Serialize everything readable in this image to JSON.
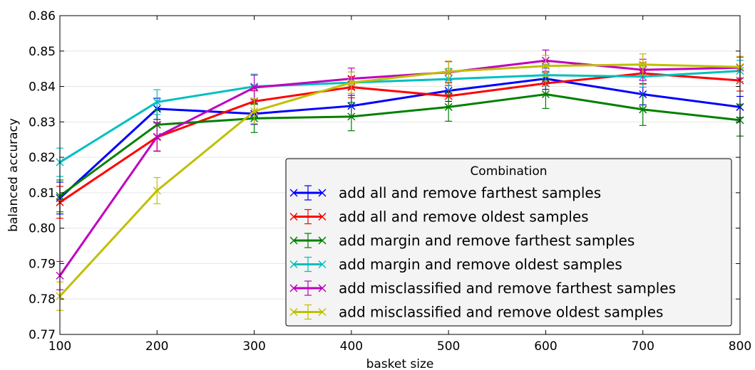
{
  "chart_data": {
    "type": "line",
    "xlabel": "basket size",
    "ylabel": "balanced accuracy",
    "xlim": [
      100,
      800
    ],
    "ylim": [
      0.77,
      0.86
    ],
    "x": [
      100,
      200,
      300,
      400,
      500,
      600,
      700,
      800
    ],
    "x_ticks": [
      "100",
      "200",
      "300",
      "400",
      "500",
      "600",
      "700",
      "800"
    ],
    "y_ticks": [
      "0.77",
      "0.78",
      "0.79",
      "0.80",
      "0.81",
      "0.82",
      "0.83",
      "0.84",
      "0.85",
      "0.86"
    ],
    "y_tick_values": [
      0.77,
      0.78,
      0.79,
      0.8,
      0.81,
      0.82,
      0.83,
      0.84,
      0.85,
      0.86
    ],
    "grid": "horizontal",
    "legend_title": "Combination",
    "legend_position": "lower right",
    "series": [
      {
        "name": "add all and remove farthest samples",
        "color": "#0000ff",
        "values": [
          0.8085,
          0.8337,
          0.8323,
          0.8345,
          0.8388,
          0.8422,
          0.8378,
          0.8342
        ],
        "errors": [
          0.0045,
          0.003,
          0.003,
          0.003,
          0.003,
          0.003,
          0.003,
          0.003
        ]
      },
      {
        "name": "add all and remove oldest samples",
        "color": "#ff0000",
        "values": [
          0.8073,
          0.8257,
          0.8358,
          0.8398,
          0.8373,
          0.8409,
          0.8437,
          0.8417
        ],
        "errors": [
          0.0045,
          0.004,
          0.003,
          0.003,
          0.003,
          0.003,
          0.003,
          0.003
        ]
      },
      {
        "name": "add margin and remove farthest samples",
        "color": "#008000",
        "values": [
          0.8091,
          0.8292,
          0.831,
          0.8315,
          0.8342,
          0.8378,
          0.8335,
          0.8305
        ],
        "errors": [
          0.0045,
          0.004,
          0.004,
          0.004,
          0.004,
          0.004,
          0.0045,
          0.0045
        ]
      },
      {
        "name": "add margin and remove oldest samples",
        "color": "#00bfbf",
        "values": [
          0.8186,
          0.8356,
          0.84,
          0.8411,
          0.8421,
          0.8432,
          0.8428,
          0.8444
        ],
        "errors": [
          0.004,
          0.0035,
          0.0035,
          0.003,
          0.003,
          0.003,
          0.003,
          0.003
        ]
      },
      {
        "name": "add misclassified and remove farthest samples",
        "color": "#bf00bf",
        "values": [
          0.7866,
          0.8258,
          0.8397,
          0.8422,
          0.844,
          0.8473,
          0.8447,
          0.8453
        ],
        "errors": [
          0.004,
          0.004,
          0.0035,
          0.003,
          0.003,
          0.003,
          0.003,
          0.003
        ]
      },
      {
        "name": "add misclassified and remove oldest samples",
        "color": "#bfbf00",
        "values": [
          0.7808,
          0.8106,
          0.833,
          0.8411,
          0.8442,
          0.8458,
          0.8462,
          0.8455
        ],
        "errors": [
          0.004,
          0.0037,
          0.0035,
          0.003,
          0.003,
          0.003,
          0.003,
          0.003
        ]
      }
    ]
  }
}
